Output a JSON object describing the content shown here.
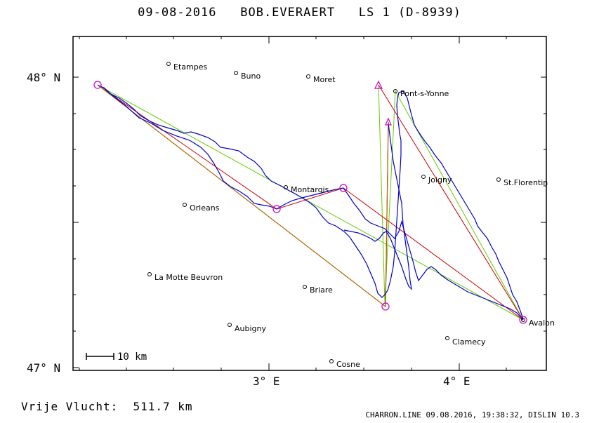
{
  "header": {
    "date": "09-08-2016",
    "pilot": "BOB.EVERAERT",
    "glider": "LS 1 (D-8939)"
  },
  "axes": {
    "lat_labels": [
      "48° N",
      "47° N"
    ],
    "lon_labels": [
      "3° E",
      "4° E"
    ]
  },
  "scale": {
    "label": "10 km"
  },
  "cities": [
    {
      "name": "Etampes"
    },
    {
      "name": "Buno"
    },
    {
      "name": "Moret"
    },
    {
      "name": "Pont-s-Yonne"
    },
    {
      "name": "Joigny"
    },
    {
      "name": "St.Florentin"
    },
    {
      "name": "Montargis"
    },
    {
      "name": "Orleans"
    },
    {
      "name": "La Motte Beuvron"
    },
    {
      "name": "Briare"
    },
    {
      "name": "Aubigny"
    },
    {
      "name": "Clamecy"
    },
    {
      "name": "Avalon"
    },
    {
      "name": "Cosne"
    }
  ],
  "footer": {
    "distance": "Vrije Vlucht:  511.7 km",
    "info": "CHARRON.LINE 09.08.2016, 19:38:32, DISLIN 10.3"
  },
  "colors": {
    "track": "#0000cc",
    "optimized_route": "#cc0000",
    "direct_line": "#66cc00",
    "turnpoint": "#cc00cc",
    "leg_brown": "#aa6600"
  }
}
